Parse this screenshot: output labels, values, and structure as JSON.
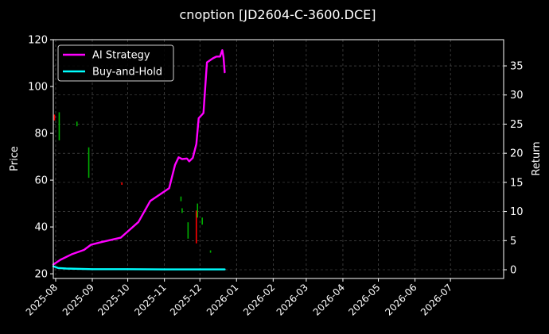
{
  "chart_data": {
    "type": "line",
    "title": "cnoption [JD2604-C-3600.DCE]",
    "ylabel": "Price",
    "y2label": "Return",
    "background": "#000000",
    "grid": true,
    "legend_position": "top-left",
    "x_ticks": [
      "2025-08",
      "2025-09",
      "2025-10",
      "2025-11",
      "2025-12",
      "2026-01",
      "2026-02",
      "2026-03",
      "2026-04",
      "2026-05",
      "2026-06",
      "2026-07"
    ],
    "x_range": [
      "2025-07-30",
      "2026-08-15"
    ],
    "ylim_left": [
      18,
      120
    ],
    "yticks_left": [
      20,
      40,
      60,
      80,
      100,
      120
    ],
    "ylim_right": [
      -1.5,
      39.5
    ],
    "yticks_right": [
      0,
      5,
      10,
      15,
      20,
      25,
      30,
      35
    ],
    "series": [
      {
        "name": "AI Strategy",
        "axis": "right",
        "color": "#ff00ff",
        "points": [
          [
            "2025-07-30",
            0.9
          ],
          [
            "2025-08-05",
            1.7
          ],
          [
            "2025-08-15",
            2.7
          ],
          [
            "2025-08-25",
            3.4
          ],
          [
            "2025-08-31",
            4.3
          ],
          [
            "2025-09-10",
            4.8
          ],
          [
            "2025-09-25",
            5.5
          ],
          [
            "2025-10-10",
            8.2
          ],
          [
            "2025-10-20",
            11.8
          ],
          [
            "2025-11-05",
            14.0
          ],
          [
            "2025-11-10",
            18.0
          ],
          [
            "2025-11-13",
            19.3
          ],
          [
            "2025-11-16",
            19.0
          ],
          [
            "2025-11-20",
            19.1
          ],
          [
            "2025-11-22",
            18.6
          ],
          [
            "2025-11-25",
            19.2
          ],
          [
            "2025-11-28",
            21.6
          ],
          [
            "2025-11-30",
            26.0
          ],
          [
            "2025-12-04",
            26.9
          ],
          [
            "2025-12-07",
            35.6
          ],
          [
            "2025-12-12",
            36.3
          ],
          [
            "2025-12-15",
            36.6
          ],
          [
            "2025-12-18",
            36.6
          ],
          [
            "2025-12-20",
            37.7
          ],
          [
            "2025-12-21",
            36.5
          ],
          [
            "2025-12-22",
            33.9
          ]
        ]
      },
      {
        "name": "Buy-and-Hold",
        "axis": "right",
        "color": "#00ffff",
        "points": [
          [
            "2025-07-30",
            0.6
          ],
          [
            "2025-08-03",
            0.3
          ],
          [
            "2025-08-10",
            0.2
          ],
          [
            "2025-09-01",
            0.1
          ],
          [
            "2025-10-01",
            0.1
          ],
          [
            "2025-11-01",
            0.05
          ],
          [
            "2025-12-22",
            0.05
          ]
        ]
      }
    ],
    "candles": [
      {
        "date": "2025-07-31",
        "low": 85.5,
        "high": 88.0,
        "color": "#ff0000"
      },
      {
        "date": "2025-08-04",
        "low": 77.0,
        "high": 89.0,
        "color": "#00b000"
      },
      {
        "date": "2025-08-19",
        "low": 83.0,
        "high": 85.0,
        "color": "#00b000"
      },
      {
        "date": "2025-08-29",
        "low": 61.0,
        "high": 74.0,
        "color": "#00b000"
      },
      {
        "date": "2025-09-26",
        "low": 58.0,
        "high": 59.0,
        "color": "#ff0000"
      },
      {
        "date": "2025-11-15",
        "low": 51.0,
        "high": 53.0,
        "color": "#00b000"
      },
      {
        "date": "2025-11-16",
        "low": 46.0,
        "high": 48.0,
        "color": "#00b000"
      },
      {
        "date": "2025-11-21",
        "low": 35.0,
        "high": 42.0,
        "color": "#00b000"
      },
      {
        "date": "2025-11-28",
        "low": 33.0,
        "high": 47.0,
        "color": "#ff0000"
      },
      {
        "date": "2025-11-29",
        "low": 44.0,
        "high": 50.0,
        "color": "#00b000"
      },
      {
        "date": "2025-12-03",
        "low": 41.0,
        "high": 44.0,
        "color": "#00b000"
      },
      {
        "date": "2025-12-10",
        "low": 29.0,
        "high": 30.0,
        "color": "#00b000"
      }
    ]
  }
}
